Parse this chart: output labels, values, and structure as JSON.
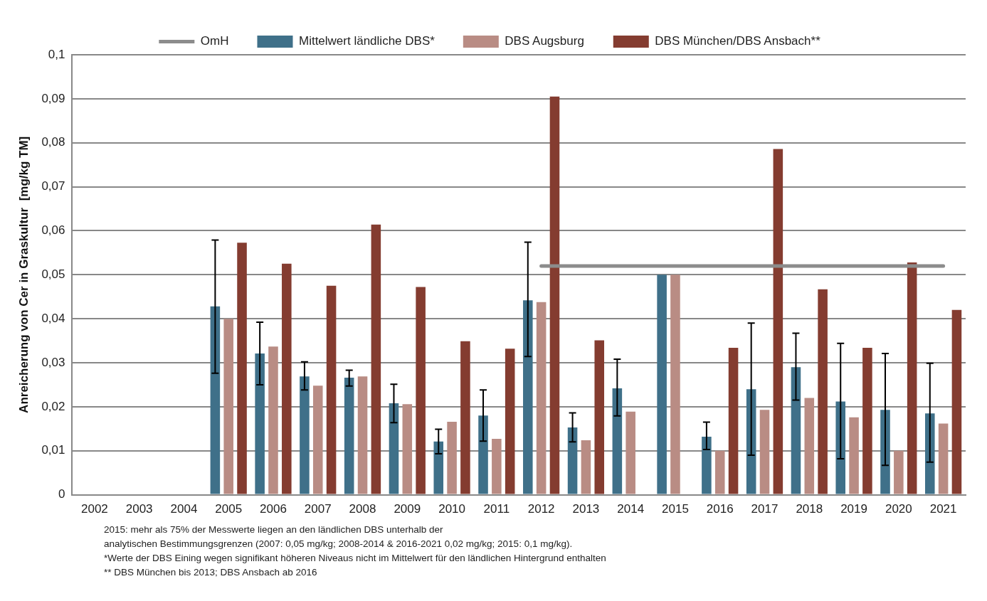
{
  "chart_data": {
    "type": "bar",
    "ylabel": "Anreicherung von Cer in Graskultur  [mg/kg TM]",
    "categories": [
      "2002",
      "2003",
      "2004",
      "2005",
      "2006",
      "2007",
      "2008",
      "2009",
      "2010",
      "2011",
      "2012",
      "2013",
      "2014",
      "2015",
      "2016",
      "2017",
      "2018",
      "2019",
      "2020",
      "2021"
    ],
    "series": [
      {
        "name": "Mittelwert ländliche DBS*",
        "color": "#3f7089",
        "values": [
          null,
          null,
          null,
          0.0428,
          0.0321,
          0.0269,
          0.0266,
          0.0208,
          0.0121,
          0.018,
          0.0442,
          0.0153,
          0.0242,
          0.05,
          0.0132,
          0.024,
          0.029,
          0.0212,
          0.0193,
          0.0185
        ],
        "errors": [
          null,
          null,
          null,
          [
            0.0276,
            0.0579
          ],
          [
            0.025,
            0.0392
          ],
          [
            0.0238,
            0.0302
          ],
          [
            0.0247,
            0.0283
          ],
          [
            0.0164,
            0.0251
          ],
          [
            0.0093,
            0.0149
          ],
          [
            0.0122,
            0.0238
          ],
          [
            0.0314,
            0.0574
          ],
          [
            0.012,
            0.0186
          ],
          [
            0.0179,
            0.0308
          ],
          null,
          [
            0.0103,
            0.0165
          ],
          [
            0.009,
            0.039
          ],
          [
            0.0215,
            0.0367
          ],
          [
            0.0082,
            0.0344
          ],
          [
            0.0067,
            0.0321
          ],
          [
            0.0074,
            0.0299
          ]
        ]
      },
      {
        "name": "DBS Augsburg",
        "color": "#b98c84",
        "values": [
          null,
          null,
          null,
          0.04,
          0.0337,
          0.0248,
          0.0269,
          0.0206,
          0.0166,
          0.0127,
          0.0438,
          0.0124,
          0.0189,
          0.05,
          0.01,
          0.0193,
          0.022,
          0.0176,
          0.01,
          0.0162
        ]
      },
      {
        "name": "DBS München/DBS Ansbach**",
        "color": "#843c30",
        "values": [
          null,
          null,
          null,
          0.0573,
          0.0525,
          0.0475,
          0.0614,
          0.0472,
          0.0349,
          0.0332,
          0.0905,
          0.0351,
          null,
          null,
          0.0334,
          0.0786,
          0.0467,
          0.0334,
          0.0528,
          0.042
        ]
      },
      {
        "name": "OmH",
        "type": "line",
        "color": "#8c8c8c",
        "marker": "none",
        "line_style": "solid",
        "values": [
          null,
          null,
          null,
          null,
          null,
          null,
          null,
          null,
          null,
          null,
          0.052,
          0.052,
          0.052,
          0.052,
          0.052,
          0.052,
          0.052,
          0.052,
          0.052,
          0.052
        ]
      }
    ],
    "ylim": [
      0,
      0.1
    ],
    "yticks": [
      {
        "value": 0,
        "label": "0"
      },
      {
        "value": 0.01,
        "label": "0,01"
      },
      {
        "value": 0.02,
        "label": "0,02"
      },
      {
        "value": 0.03,
        "label": "0,03"
      },
      {
        "value": 0.04,
        "label": "0,04"
      },
      {
        "value": 0.05,
        "label": "0,05"
      },
      {
        "value": 0.06,
        "label": "0,06"
      },
      {
        "value": 0.07,
        "label": "0,07"
      },
      {
        "value": 0.08,
        "label": "0,08"
      },
      {
        "value": 0.09,
        "label": "0,09"
      },
      {
        "value": 0.1,
        "label": "0,1"
      }
    ],
    "grid": "y",
    "legend": "top",
    "annotations": [
      "2015: mehr als 75% der Messwerte liegen an den ländlichen DBS unterhalb der",
      "analytischen Bestimmungsgrenzen (2007: 0,05 mg/kg; 2008-2014 & 2016-2021 0,02 mg/kg; 2015: 0,1 mg/kg).",
      "*Werte der DBS Eining wegen signifikant höheren Niveaus nicht im Mittelwert für den ländlichen Hintergrund enthalten",
      "** DBS München bis 2013; DBS Ansbach ab 2016"
    ]
  }
}
